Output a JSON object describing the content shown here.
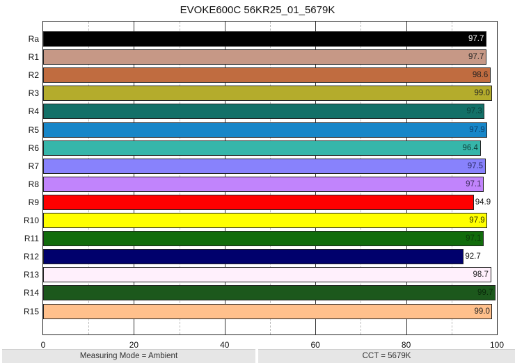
{
  "chart_data": {
    "type": "bar",
    "orientation": "horizontal",
    "title": "EVOKE600C 56KR25_01_5679K",
    "xlabel": "",
    "ylabel": "",
    "xlim": [
      0,
      100
    ],
    "x_ticks": [
      "0",
      "20",
      "40",
      "60",
      "80",
      "100"
    ],
    "grid": {
      "major_every": 20,
      "minor_every": 10,
      "minor_style": "dashed"
    },
    "legend": "none",
    "categories": [
      "Ra",
      "R1",
      "R2",
      "R3",
      "R4",
      "R5",
      "R6",
      "R7",
      "R8",
      "R9",
      "R10",
      "R11",
      "R12",
      "R13",
      "R14",
      "R15"
    ],
    "values": [
      97.7,
      97.7,
      98.6,
      99.0,
      97.3,
      97.9,
      96.4,
      97.5,
      97.1,
      94.9,
      97.9,
      97.1,
      92.7,
      98.7,
      99.7,
      99.0
    ],
    "value_labels": [
      "97.7",
      "97.7",
      "98.6",
      "99.0",
      "97.3",
      "97.9",
      "96.4",
      "97.5",
      "97.1",
      "94.9",
      "97.9",
      "97.1",
      "92.7",
      "98.7",
      "99.7",
      "99.0"
    ],
    "colors": [
      "#000000",
      "#c69886",
      "#c06c40",
      "#b4ac2c",
      "#137068",
      "#1786c8",
      "#36b6aa",
      "#8882fc",
      "#c184fc",
      "#ff0000",
      "#ffff00",
      "#116c0c",
      "#00006c",
      "#fff0fc",
      "#1c581c",
      "#ffc08c"
    ],
    "label_colors": [
      "#ffffff",
      "#222222",
      "#222222",
      "#222222",
      "#0a3c38",
      "#0a3f6a",
      "#0e3c38",
      "#2a2a66",
      "#3a2a5a",
      "#111111",
      "#333300",
      "#0a3a08",
      "#111111",
      "#222222",
      "#0a2a0a",
      "#222222"
    ],
    "label_outside": [
      false,
      false,
      false,
      false,
      false,
      false,
      false,
      false,
      false,
      true,
      false,
      false,
      true,
      false,
      false,
      false
    ]
  },
  "footer": {
    "measuring_mode": "Measuring Mode = Ambient",
    "cct": "CCT = 5679K"
  }
}
